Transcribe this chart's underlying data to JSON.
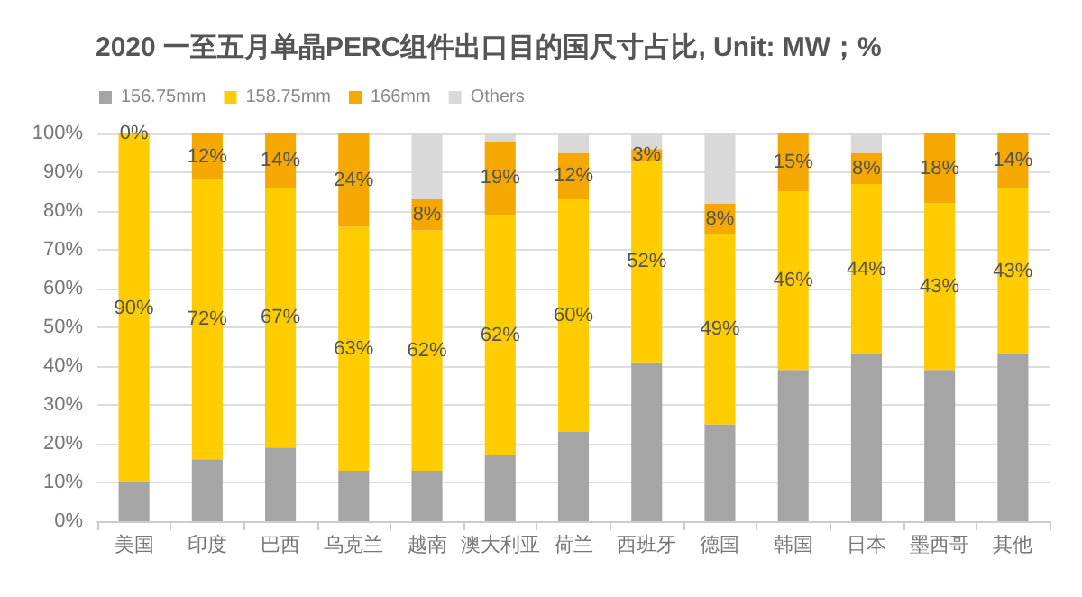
{
  "chart_data": {
    "type": "bar",
    "title": "2020 一至五月单晶PERC组件出口目的国尺寸占比, Unit: MW；%",
    "categories": [
      "美国",
      "印度",
      "巴西",
      "乌克兰",
      "越南",
      "澳大利亚",
      "荷兰",
      "西班牙",
      "德国",
      "韩国",
      "日本",
      "墨西哥",
      "其他"
    ],
    "stacked": true,
    "legend": "top left",
    "grid": "y",
    "ylim": [
      0,
      100
    ],
    "yticks": [
      {
        "value": 0,
        "label": "0%"
      },
      {
        "value": 10,
        "label": "10%"
      },
      {
        "value": 20,
        "label": "20%"
      },
      {
        "value": 30,
        "label": "30%"
      },
      {
        "value": 40,
        "label": "40%"
      },
      {
        "value": 50,
        "label": "50%"
      },
      {
        "value": 60,
        "label": "60%"
      },
      {
        "value": 70,
        "label": "70%"
      },
      {
        "value": 80,
        "label": "80%"
      },
      {
        "value": 90,
        "label": "90%"
      },
      {
        "value": 100,
        "label": "100%"
      }
    ],
    "series": [
      {
        "name": "156.75mm",
        "color": "#a5a5a5",
        "values": [
          10,
          16,
          19,
          13,
          13,
          17,
          23,
          41,
          25,
          39,
          43,
          39,
          43
        ]
      },
      {
        "name": "158.75mm",
        "color": "#ffcc00",
        "values": [
          90,
          72,
          67,
          63,
          62,
          62,
          60,
          52,
          49,
          46,
          44,
          43,
          43
        ],
        "value_labels": [
          "90%",
          "72%",
          "67%",
          "63%",
          "62%",
          "62%",
          "60%",
          "52%",
          "49%",
          "46%",
          "44%",
          "43%",
          "43%"
        ]
      },
      {
        "name": "166mm",
        "color": "#f5a800",
        "values": [
          0,
          12,
          14,
          24,
          8,
          19,
          12,
          3,
          8,
          15,
          8,
          18,
          14
        ],
        "value_labels": [
          "0%",
          "12%",
          "14%",
          "24%",
          "8%",
          "19%",
          "12%",
          "3%",
          "8%",
          "15%",
          "8%",
          "18%",
          "14%"
        ]
      },
      {
        "name": "Others",
        "color": "#d9d9d9",
        "values": [
          0,
          0,
          0,
          0,
          17,
          2,
          5,
          4,
          18,
          0,
          5,
          0,
          0
        ]
      }
    ]
  }
}
